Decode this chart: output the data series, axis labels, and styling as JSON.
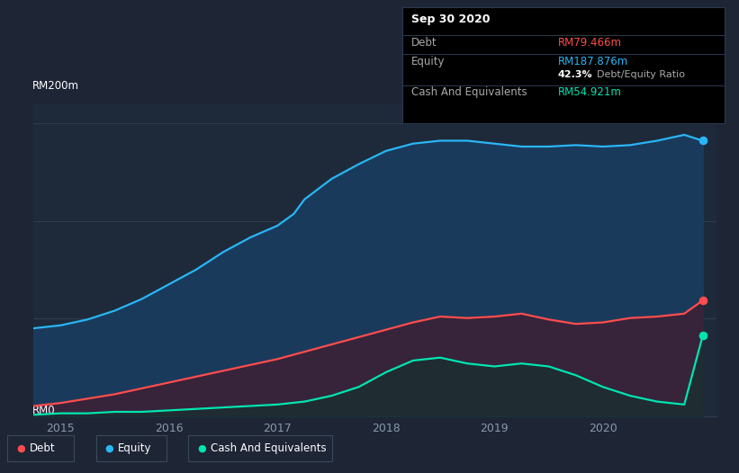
{
  "bg_color": "#1e2535",
  "plot_bg_color": "#1e2535",
  "chart_bg_color": "#1e2a3a",
  "grid_color": "#2e3d52",
  "debt_color": "#ff4d4d",
  "equity_color": "#29b6f6",
  "cash_color": "#00e5b0",
  "equity_fill": "#1a3a5c",
  "debt_fill": "#3d1f35",
  "cash_fill": "#163030",
  "tooltip_bg": "#000000",
  "tooltip_border": "#2a3a50",
  "ylabel_text": "RM200m",
  "y0_text": "RM0",
  "x_ticks": [
    2015,
    2016,
    2017,
    2018,
    2019,
    2020
  ],
  "tooltip_title": "Sep 30 2020",
  "tooltip_rows": [
    {
      "label": "Debt",
      "value": "RM79.466m",
      "value_color": "#ff4d4d",
      "label_color": "#aaaaaa"
    },
    {
      "label": "Equity",
      "value": "RM187.876m",
      "value_color": "#29b6f6",
      "label_color": "#aaaaaa"
    },
    {
      "label": "",
      "value": "42.3% Debt/Equity Ratio",
      "value_color": "#ffffff",
      "label_color": "#aaaaaa"
    },
    {
      "label": "Cash And Equivalents",
      "value": "RM54.921m",
      "value_color": "#00e5b0",
      "label_color": "#aaaaaa"
    }
  ],
  "equity_data": {
    "x": [
      2014.75,
      2015.0,
      2015.25,
      2015.5,
      2015.75,
      2016.0,
      2016.25,
      2016.5,
      2016.75,
      2017.0,
      2017.15,
      2017.25,
      2017.5,
      2017.75,
      2018.0,
      2018.25,
      2018.5,
      2018.75,
      2019.0,
      2019.25,
      2019.5,
      2019.75,
      2020.0,
      2020.25,
      2020.5,
      2020.75,
      2020.92
    ],
    "y": [
      60,
      62,
      66,
      72,
      80,
      90,
      100,
      112,
      122,
      130,
      138,
      148,
      162,
      172,
      181,
      186,
      188,
      188,
      186,
      184,
      184,
      185,
      184,
      185,
      188,
      192,
      188
    ]
  },
  "debt_data": {
    "x": [
      2014.75,
      2015.0,
      2015.25,
      2015.5,
      2015.75,
      2016.0,
      2016.25,
      2016.5,
      2016.75,
      2017.0,
      2017.25,
      2017.5,
      2017.75,
      2018.0,
      2018.25,
      2018.5,
      2018.75,
      2019.0,
      2019.25,
      2019.5,
      2019.75,
      2020.0,
      2020.25,
      2020.5,
      2020.75,
      2020.92
    ],
    "y": [
      7,
      9,
      12,
      15,
      19,
      23,
      27,
      31,
      35,
      39,
      44,
      49,
      54,
      59,
      64,
      68,
      67,
      68,
      70,
      66,
      63,
      64,
      67,
      68,
      70,
      79
    ]
  },
  "cash_data": {
    "x": [
      2014.75,
      2015.0,
      2015.25,
      2015.5,
      2015.75,
      2016.0,
      2016.25,
      2016.5,
      2016.75,
      2017.0,
      2017.25,
      2017.5,
      2017.75,
      2018.0,
      2018.25,
      2018.5,
      2018.75,
      2019.0,
      2019.25,
      2019.5,
      2019.75,
      2020.0,
      2020.25,
      2020.5,
      2020.75,
      2020.92
    ],
    "y": [
      1,
      2,
      2,
      3,
      3,
      4,
      5,
      6,
      7,
      8,
      10,
      14,
      20,
      30,
      38,
      40,
      36,
      34,
      36,
      34,
      28,
      20,
      14,
      10,
      8,
      55
    ]
  },
  "ylim": [
    0,
    213
  ],
  "xlim": [
    2014.75,
    2021.05
  ],
  "legend_items": [
    {
      "label": "Debt",
      "color": "#ff4d4d"
    },
    {
      "label": "Equity",
      "color": "#29b6f6"
    },
    {
      "label": "Cash And Equivalents",
      "color": "#00e5b0"
    }
  ]
}
